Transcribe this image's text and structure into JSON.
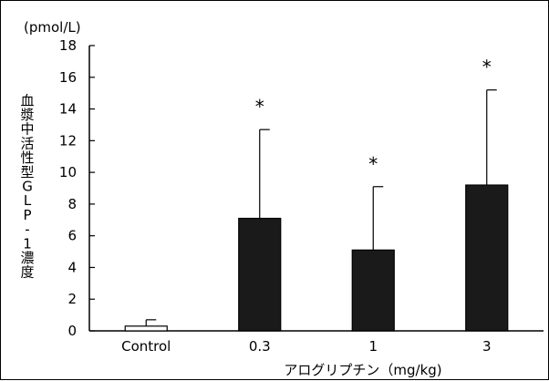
{
  "chart_data": {
    "type": "bar",
    "categories": [
      "Control",
      "0.3",
      "1",
      "3"
    ],
    "values": [
      0.3,
      7.1,
      5.1,
      9.2
    ],
    "errors": [
      0.4,
      5.6,
      4.0,
      6.0
    ],
    "significance": [
      "",
      "*",
      "*",
      "*"
    ],
    "title": "",
    "ylabel": "血漿中活性型GLP-1濃度",
    "yunit": "(pmol/L)",
    "xlabel": "アログリプチン（mg/kg)",
    "ylim": [
      0,
      18
    ],
    "yticks": [
      0,
      2,
      4,
      6,
      8,
      10,
      12,
      14,
      16,
      18
    ],
    "grid": false,
    "legend": "none",
    "colors": {
      "control": "#ffffff",
      "treated": "#1a1a1a",
      "axis": "#000000"
    }
  }
}
